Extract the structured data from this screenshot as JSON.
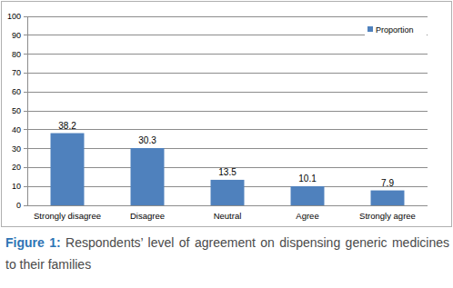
{
  "chart_data": {
    "type": "bar",
    "title": "Figure 1: Respondents’ level of agreement on dispensing generic medicines to their families",
    "categories": [
      "Strongly disagree",
      "Disagree",
      "Neutral",
      "Agree",
      "Strongly agree"
    ],
    "series": [
      {
        "name": "Proportion",
        "color": "#4f81bd",
        "values": [
          38.2,
          30.3,
          13.5,
          10.1,
          7.9
        ]
      }
    ],
    "ylim": [
      0,
      100
    ],
    "yticks": [
      0,
      10,
      20,
      30,
      40,
      50,
      60,
      70,
      80,
      90,
      100
    ],
    "grid": true,
    "legend": "upper right",
    "data_labels": true
  }
}
